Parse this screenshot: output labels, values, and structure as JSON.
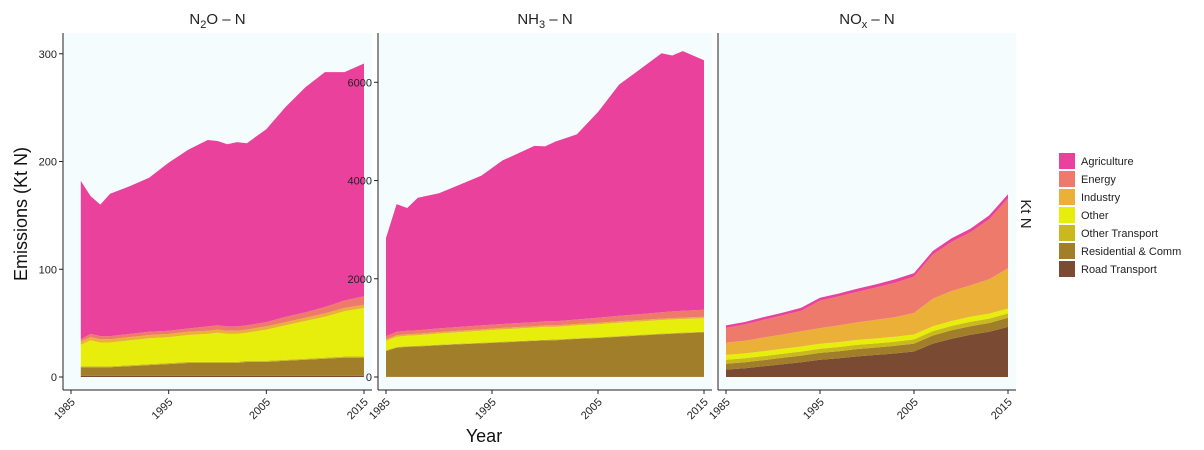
{
  "chart_data": {
    "type": "area",
    "ylabel": "Emissions (Kt N)",
    "xlabel": "Year",
    "right_label": "Kt N",
    "x_ticks": [
      1985,
      1995,
      2005,
      2015
    ],
    "legend_position": "right",
    "legend": [
      {
        "name": "Agriculture",
        "color": "#E9419C"
      },
      {
        "name": "Energy",
        "color": "#EE7A6B"
      },
      {
        "name": "Industry",
        "color": "#EBB038"
      },
      {
        "name": "Other",
        "color": "#E8EE0C"
      },
      {
        "name": "Other Transport",
        "color": "#C9B91F"
      },
      {
        "name": "Residential & Comm",
        "color": "#A07E2A"
      },
      {
        "name": "Road Transport",
        "color": "#7B4A32"
      }
    ],
    "panels": [
      {
        "title_main": "N",
        "title_sub": "2",
        "title_rest": "O – N",
        "sub_type": "subscript",
        "ylim": [
          0,
          310
        ],
        "yticks": [
          0,
          100,
          200,
          300
        ],
        "x": [
          1986,
          1987,
          1988,
          1989,
          1991,
          1993,
          1995,
          1997,
          1999,
          2000,
          2001,
          2002,
          2003,
          2005,
          2007,
          2009,
          2011,
          2013,
          2015
        ],
        "series": [
          {
            "name": "Road Transport",
            "values": [
              1,
              1,
              1,
              1,
              1,
              1,
              1,
              1,
              1,
              1,
              1,
              1,
              1,
              1,
              1,
              1,
              1,
              1,
              1
            ]
          },
          {
            "name": "Residential & Comm",
            "values": [
              8,
              8,
              8,
              8,
              9,
              10,
              11,
              12,
              12,
              12,
              12,
              12,
              13,
              13,
              14,
              15,
              16,
              17,
              17
            ]
          },
          {
            "name": "Other Transport",
            "values": [
              1,
              1,
              1,
              1,
              1,
              1,
              1,
              1,
              1,
              1,
              1,
              1,
              1,
              1,
              1,
              1,
              1,
              1,
              1
            ]
          },
          {
            "name": "Other",
            "values": [
              20,
              24,
              22,
              22,
              23,
              24,
              24,
              25,
              26,
              27,
              26,
              26,
              26,
              29,
              32,
              35,
              38,
              42,
              45
            ]
          },
          {
            "name": "Industry",
            "values": [
              3,
              3,
              3,
              3,
              3,
              3,
              3,
              3,
              3,
              3,
              3,
              3,
              3,
              3,
              3,
              3,
              3,
              3,
              3
            ]
          },
          {
            "name": "Energy",
            "values": [
              2,
              3,
              3,
              3,
              3,
              3,
              3,
              3,
              4,
              4,
              4,
              4,
              4,
              4,
              5,
              5,
              6,
              7,
              8
            ]
          },
          {
            "name": "Agriculture",
            "values": [
              147,
              128,
              122,
              132,
              137,
              143,
              156,
              166,
              173,
              171,
              169,
              171,
              169,
              179,
              195,
              209,
              218,
              212,
              216
            ]
          }
        ]
      },
      {
        "title_main": "NH",
        "title_sub": "3",
        "title_rest": " – N",
        "sub_type": "subscript",
        "ylim": [
          0,
          6800
        ],
        "yticks": [
          0,
          2000,
          4000,
          6000
        ],
        "x": [
          1985,
          1986,
          1987,
          1988,
          1990,
          1992,
          1994,
          1996,
          1998,
          1999,
          2000,
          2001,
          2003,
          2005,
          2007,
          2009,
          2011,
          2012,
          2013,
          2015
        ],
        "series": [
          {
            "name": "Road Transport",
            "values": [
              5,
              5,
              5,
              5,
              5,
              5,
              5,
              5,
              5,
              5,
              5,
              5,
              5,
              5,
              5,
              5,
              5,
              5,
              5,
              5
            ]
          },
          {
            "name": "Residential & Comm",
            "values": [
              525,
              590,
              610,
              615,
              640,
              660,
              680,
              700,
              720,
              730,
              740,
              745,
              770,
              790,
              815,
              840,
              865,
              875,
              885,
              905
            ]
          },
          {
            "name": "Other Transport",
            "values": [
              15,
              15,
              15,
              15,
              15,
              15,
              15,
              15,
              15,
              15,
              15,
              15,
              15,
              15,
              15,
              15,
              15,
              15,
              15,
              15
            ]
          },
          {
            "name": "Other",
            "values": [
              190,
              210,
              210,
              215,
              225,
              235,
              240,
              250,
              255,
              255,
              260,
              255,
              260,
              265,
              270,
              270,
              275,
              275,
              275,
              270
            ]
          },
          {
            "name": "Industry",
            "values": [
              30,
              30,
              30,
              30,
              30,
              30,
              30,
              30,
              30,
              30,
              30,
              30,
              30,
              30,
              30,
              30,
              30,
              30,
              30,
              30
            ]
          },
          {
            "name": "Energy",
            "values": [
              65,
              70,
              70,
              70,
              75,
              75,
              80,
              80,
              80,
              80,
              85,
              85,
              90,
              100,
              110,
              120,
              130,
              135,
              140,
              145
            ]
          },
          {
            "name": "Agriculture",
            "values": [
              2000,
              2600,
              2500,
              2700,
              2750,
              2900,
              3050,
              3330,
              3500,
              3590,
              3560,
              3660,
              3770,
              4190,
              4710,
              4990,
              5270,
              5210,
              5285,
              5080
            ]
          }
        ]
      },
      {
        "title_main": "NO",
        "title_sub": "x",
        "title_rest": " – N",
        "sub_type": "subscript",
        "ylim": [
          0,
          6800
        ],
        "yticks": [],
        "x": [
          1985,
          1987,
          1989,
          1991,
          1993,
          1995,
          1997,
          1999,
          2001,
          2003,
          2005,
          2007,
          2009,
          2011,
          2013,
          2015
        ],
        "series": [
          {
            "name": "Road Transport",
            "values": [
              150,
              180,
              220,
              260,
              300,
              350,
              380,
              420,
              450,
              480,
              520,
              680,
              780,
              860,
              920,
              1020
            ]
          },
          {
            "name": "Residential & Comm",
            "values": [
              120,
              120,
              125,
              130,
              135,
              140,
              145,
              150,
              150,
              155,
              160,
              165,
              170,
              175,
              180,
              185
            ]
          },
          {
            "name": "Other Transport",
            "values": [
              80,
              80,
              80,
              85,
              85,
              85,
              85,
              85,
              85,
              85,
              85,
              90,
              90,
              90,
              90,
              90
            ]
          },
          {
            "name": "Other",
            "values": [
              100,
              100,
              100,
              100,
              100,
              100,
              100,
              100,
              100,
              100,
              100,
              100,
              100,
              100,
              100,
              100
            ]
          },
          {
            "name": "Industry",
            "values": [
              250,
              260,
              280,
              290,
              310,
              320,
              340,
              360,
              380,
              400,
              440,
              560,
              610,
              640,
              700,
              820
            ]
          },
          {
            "name": "Energy",
            "values": [
              300,
              330,
              360,
              390,
              420,
              560,
              590,
              620,
              660,
              700,
              740,
              900,
              1000,
              1080,
              1220,
              1420
            ]
          },
          {
            "name": "Agriculture",
            "values": [
              50,
              50,
              55,
              55,
              60,
              60,
              60,
              65,
              65,
              70,
              70,
              70,
              75,
              75,
              80,
              85
            ]
          }
        ]
      }
    ]
  }
}
